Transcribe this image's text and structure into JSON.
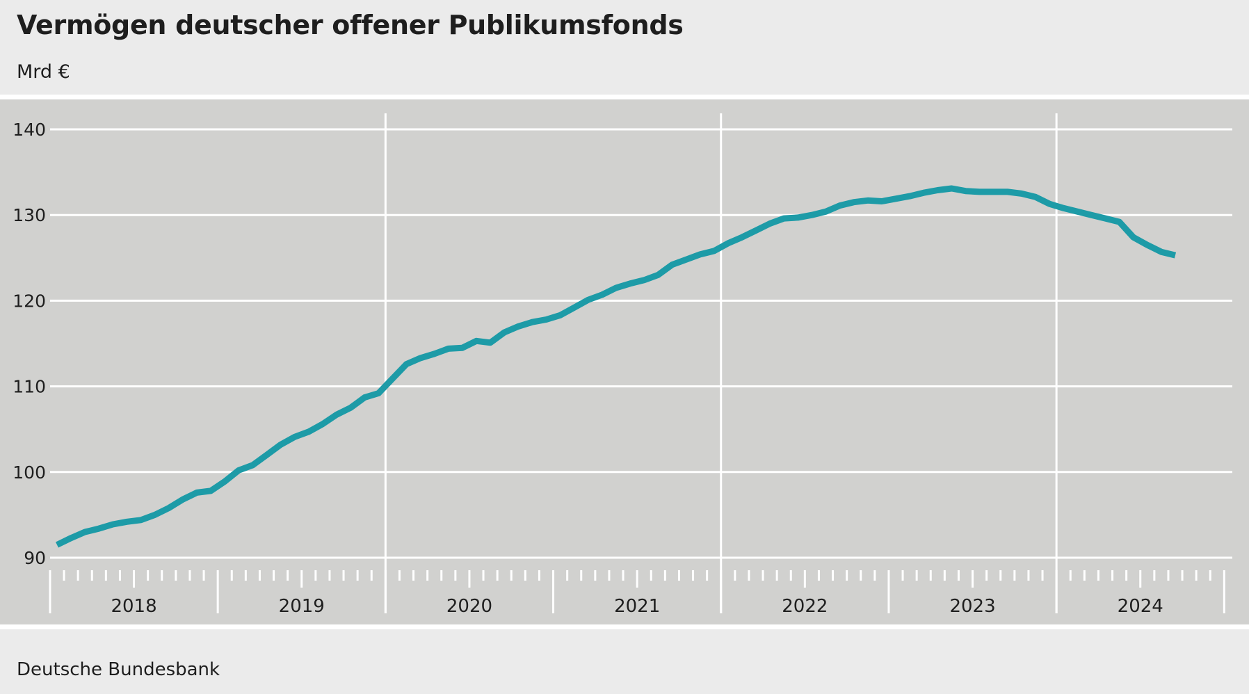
{
  "header": {
    "title": "Vermögen deutscher offener Publikumsfonds",
    "unit": "Mrd €"
  },
  "footer": {
    "source": "Deutsche Bundesbank"
  },
  "colors": {
    "line": "#1d9ba7",
    "plot_background": "#d1d1cf",
    "page_background": "#ebebeb",
    "grid": "#ffffff"
  },
  "chart_data": {
    "type": "line",
    "title": "Vermögen deutscher offener Publikumsfonds",
    "ylabel": "Mrd €",
    "xlabel": "",
    "ylim": [
      90,
      140
    ],
    "yticks": [
      90,
      100,
      110,
      120,
      130,
      140
    ],
    "year_labels": [
      "2018",
      "2019",
      "2020",
      "2021",
      "2022",
      "2023",
      "2024"
    ],
    "x_start": "2018-01",
    "x_end": "2024-12",
    "grid": "horizontal gridlines, vertical lines at 2020, 2022, 2024",
    "series": [
      {
        "name": "",
        "color": "#1d9ba7",
        "x": [
          "2018-01",
          "2018-02",
          "2018-03",
          "2018-04",
          "2018-05",
          "2018-06",
          "2018-07",
          "2018-08",
          "2018-09",
          "2018-10",
          "2018-11",
          "2018-12",
          "2019-01",
          "2019-02",
          "2019-03",
          "2019-04",
          "2019-05",
          "2019-06",
          "2019-07",
          "2019-08",
          "2019-09",
          "2019-10",
          "2019-11",
          "2019-12",
          "2020-01",
          "2020-02",
          "2020-03",
          "2020-04",
          "2020-05",
          "2020-06",
          "2020-07",
          "2020-08",
          "2020-09",
          "2020-10",
          "2020-11",
          "2020-12",
          "2021-01",
          "2021-02",
          "2021-03",
          "2021-04",
          "2021-05",
          "2021-06",
          "2021-07",
          "2021-08",
          "2021-09",
          "2021-10",
          "2021-11",
          "2021-12",
          "2022-01",
          "2022-02",
          "2022-03",
          "2022-04",
          "2022-05",
          "2022-06",
          "2022-07",
          "2022-08",
          "2022-09",
          "2022-10",
          "2022-11",
          "2022-12",
          "2023-01",
          "2023-02",
          "2023-03",
          "2023-04",
          "2023-05",
          "2023-06",
          "2023-07",
          "2023-08",
          "2023-09",
          "2023-10",
          "2023-11",
          "2023-12",
          "2024-01",
          "2024-02",
          "2024-03",
          "2024-04",
          "2024-05",
          "2024-06",
          "2024-07",
          "2024-08",
          "2024-09"
        ],
        "values": [
          91.5,
          92.3,
          93.0,
          93.4,
          93.9,
          94.2,
          94.4,
          95.0,
          95.8,
          96.8,
          97.6,
          97.8,
          98.9,
          100.2,
          100.8,
          102.0,
          103.2,
          104.1,
          104.7,
          105.6,
          106.7,
          107.5,
          108.7,
          109.2,
          110.9,
          112.6,
          113.3,
          113.8,
          114.4,
          114.5,
          115.3,
          115.1,
          116.3,
          117.0,
          117.5,
          117.8,
          118.3,
          119.2,
          120.1,
          120.7,
          121.5,
          122.0,
          122.4,
          123.0,
          124.2,
          124.8,
          125.4,
          125.8,
          126.7,
          127.4,
          128.2,
          129.0,
          129.6,
          129.7,
          130.0,
          130.4,
          131.1,
          131.5,
          131.7,
          131.6,
          131.9,
          132.2,
          132.6,
          132.9,
          133.1,
          132.8,
          132.7,
          132.7,
          132.7,
          132.5,
          132.1,
          131.3,
          130.8,
          130.4,
          130.0,
          129.6,
          129.2,
          127.4,
          126.5,
          125.7,
          125.3
        ]
      }
    ]
  }
}
